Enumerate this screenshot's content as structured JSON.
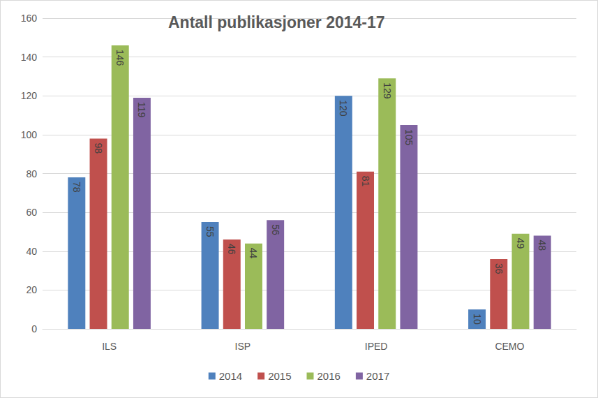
{
  "chart_data": {
    "type": "bar",
    "title": "Antall publikasjoner 2014-17",
    "categories": [
      "ILS",
      "ISP",
      "IPED",
      "CEMO"
    ],
    "series": [
      {
        "name": "2014",
        "color": "#4f81bd",
        "values": [
          78,
          55,
          120,
          10
        ]
      },
      {
        "name": "2015",
        "color": "#c0504d",
        "values": [
          98,
          46,
          81,
          36
        ]
      },
      {
        "name": "2016",
        "color": "#9bbb59",
        "values": [
          146,
          44,
          129,
          49
        ]
      },
      {
        "name": "2017",
        "color": "#8064a2",
        "values": [
          119,
          56,
          105,
          48
        ]
      }
    ],
    "ylim": [
      0,
      160
    ],
    "yticks": [
      0,
      20,
      40,
      60,
      80,
      100,
      120,
      140,
      160
    ],
    "grid": true,
    "legend": "bottom",
    "data_labels": true
  }
}
